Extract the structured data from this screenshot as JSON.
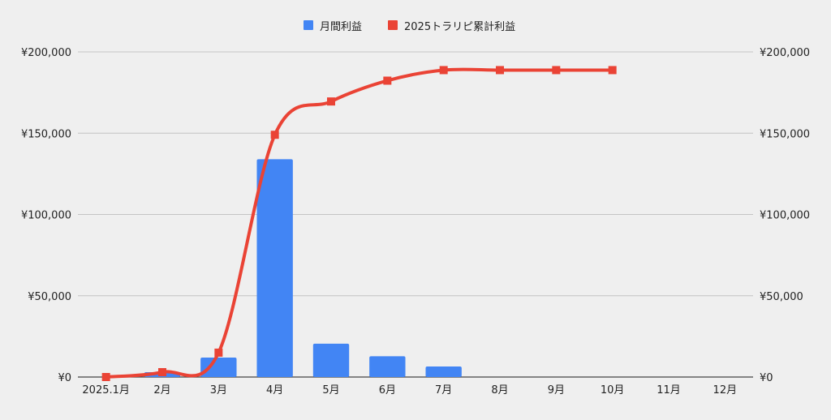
{
  "chart_data": {
    "type": "bar+line",
    "categories": [
      "2025.1月",
      "2月",
      "3月",
      "4月",
      "5月",
      "6月",
      "7月",
      "8月",
      "9月",
      "10月",
      "11月",
      "12月"
    ],
    "series": [
      {
        "name": "月間利益",
        "type": "bar",
        "axis": "left",
        "color": "#4285f4",
        "values": [
          0,
          3000,
          12000,
          134000,
          20500,
          12800,
          6500,
          null,
          null,
          null,
          null,
          null
        ]
      },
      {
        "name": "2025トラリピ累計利益",
        "type": "line",
        "axis": "right",
        "color": "#ea4335",
        "values": [
          0,
          3000,
          15000,
          149000,
          169500,
          182300,
          188800,
          188800,
          188800,
          188800,
          null,
          null
        ]
      }
    ],
    "y_left": {
      "ylim": [
        0,
        200000
      ],
      "ticks": [
        "¥0",
        "¥50,000",
        "¥100,000",
        "¥150,000",
        "¥200,000"
      ]
    },
    "y_right": {
      "ylim": [
        0,
        200000
      ],
      "ticks": [
        "¥0",
        "¥50,000",
        "¥100,000",
        "¥150,000",
        "¥200,000"
      ]
    },
    "grid": true,
    "legend": "top-center"
  }
}
